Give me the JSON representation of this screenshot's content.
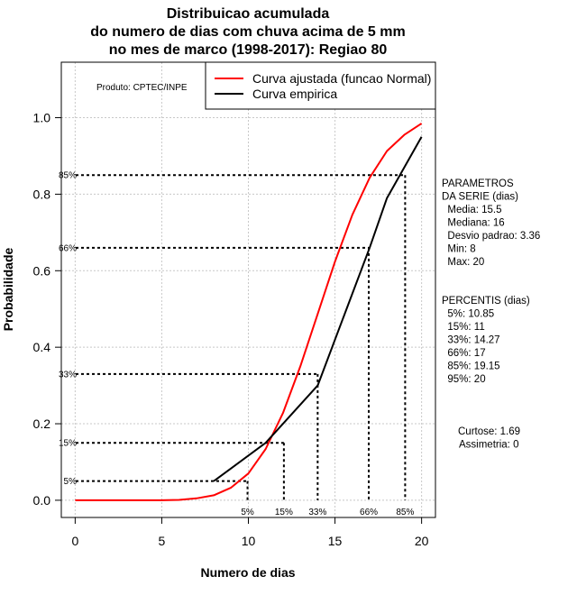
{
  "chart_data": {
    "type": "line",
    "title": [
      "Distribuicao acumulada",
      "do numero de dias com chuva acima de 5 mm",
      "no mes de marco (1998-2017): Regiao 80"
    ],
    "xlabel": "Numero de dias",
    "ylabel": "Probabilidade",
    "xlim": [
      -0.8,
      20.8
    ],
    "ylim": [
      -0.045,
      1.145
    ],
    "xticks": [
      0,
      5,
      10,
      15,
      20
    ],
    "yticks": [
      0.0,
      0.2,
      0.4,
      0.6,
      0.8,
      1.0
    ],
    "xtick_labels": [
      "0",
      "5",
      "10",
      "15",
      "20"
    ],
    "ytick_labels": [
      "0.0",
      "0.2",
      "0.4",
      "0.6",
      "0.8",
      "1.0"
    ],
    "grid": true,
    "legend_position": "top-right",
    "source_note": "Produto: CPTEC/INPE",
    "series": [
      {
        "name": "Curva ajustada (funcao Normal)",
        "color": "#ff0000",
        "x": [
          0,
          1,
          2,
          3,
          4,
          5,
          6,
          7,
          8,
          9,
          10,
          11,
          12,
          13,
          14,
          15,
          16,
          17,
          18,
          19,
          20
        ],
        "y": [
          0.0,
          0.0,
          0.0,
          0.0,
          0.0,
          0.0,
          0.001,
          0.005,
          0.013,
          0.033,
          0.07,
          0.134,
          0.228,
          0.35,
          0.487,
          0.624,
          0.746,
          0.843,
          0.913,
          0.955,
          0.985
        ]
      },
      {
        "name": "Curva empirica",
        "color": "#000000",
        "x": [
          8,
          11,
          14,
          17,
          18,
          20
        ],
        "y": [
          0.05,
          0.15,
          0.3,
          0.66,
          0.79,
          0.95
        ]
      }
    ],
    "percentiles": [
      {
        "label": "5%",
        "x": 9.95,
        "y": 0.05
      },
      {
        "label": "15%",
        "x": 12.05,
        "y": 0.15
      },
      {
        "label": "33%",
        "x": 14.0,
        "y": 0.33
      },
      {
        "label": "66%",
        "x": 16.95,
        "y": 0.66
      },
      {
        "label": "85%",
        "x": 19.05,
        "y": 0.85
      }
    ]
  },
  "side_panel": {
    "params": [
      "PARAMETROS",
      "DA SERIE (dias)",
      "  Media: 15.5",
      "  Mediana: 16",
      "  Desvio padrao: 3.36",
      "  Min: 8",
      "  Max: 20"
    ],
    "percentis": [
      "PERCENTIS (dias)",
      "  5%: 10.85",
      "  15%: 11",
      "  33%: 14.27",
      "  66%: 17",
      "  85%: 19.15",
      "  95%: 20"
    ],
    "shape": [
      "Curtose: 1.69",
      "Assimetria: 0"
    ]
  }
}
